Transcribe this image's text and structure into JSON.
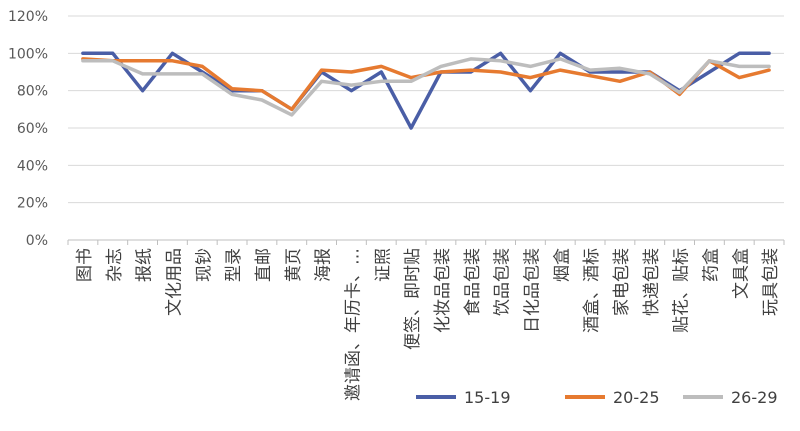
{
  "chart_data": {
    "type": "line",
    "categories": [
      "图书",
      "杂志",
      "报纸",
      "文化用品",
      "现钞",
      "型录",
      "直邮",
      "黄页",
      "海报",
      "邀请函、年历卡、…",
      "证照",
      "便签、即时贴",
      "化妆品包装",
      "食品包装",
      "饮品包装",
      "日化品包装",
      "烟盒",
      "酒盒、酒标",
      "家电包装",
      "快递包装",
      "贴花、贴标",
      "药盒",
      "文具盒",
      "玩具包装"
    ],
    "y_tick_labels": [
      "0%",
      "20%",
      "40%",
      "60%",
      "80%",
      "100%",
      "120%"
    ],
    "ylim": [
      0,
      1.2
    ],
    "grid": true,
    "legend_position": "bottom-right",
    "series": [
      {
        "name": "15-19",
        "color": "#4a5ea6",
        "values": [
          1.0,
          1.0,
          0.8,
          1.0,
          0.9,
          0.8,
          0.8,
          0.7,
          0.9,
          0.8,
          0.9,
          0.6,
          0.9,
          0.9,
          1.0,
          0.8,
          1.0,
          0.9,
          0.9,
          0.9,
          0.8,
          0.9,
          1.0,
          1.0
        ]
      },
      {
        "name": "20-25",
        "color": "#e67a30",
        "values": [
          0.97,
          0.96,
          0.96,
          0.96,
          0.93,
          0.81,
          0.8,
          0.7,
          0.91,
          0.9,
          0.93,
          0.87,
          0.9,
          0.91,
          0.9,
          0.87,
          0.91,
          0.88,
          0.85,
          0.9,
          0.78,
          0.96,
          0.87,
          0.91
        ]
      },
      {
        "name": "26-29",
        "color": "#bdbdbd",
        "values": [
          0.96,
          0.96,
          0.89,
          0.89,
          0.89,
          0.78,
          0.75,
          0.67,
          0.85,
          0.83,
          0.85,
          0.85,
          0.93,
          0.97,
          0.96,
          0.93,
          0.97,
          0.91,
          0.92,
          0.89,
          0.79,
          0.96,
          0.93,
          0.93
        ]
      }
    ]
  }
}
